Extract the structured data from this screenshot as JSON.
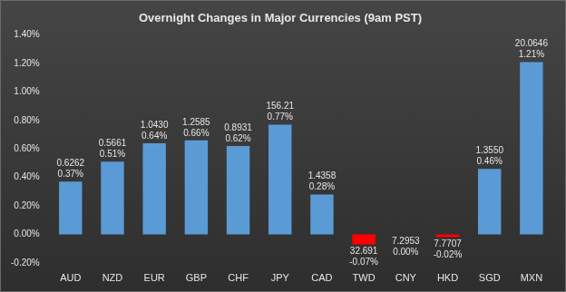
{
  "chart_data": {
    "type": "bar",
    "title": "Overnight Changes in Major Currencies (9am PST)",
    "categories": [
      "AUD",
      "NZD",
      "EUR",
      "GBP",
      "CHF",
      "JPY",
      "CAD",
      "TWD",
      "CNY",
      "HKD",
      "SGD",
      "MXN"
    ],
    "values": [
      0.37,
      0.51,
      0.64,
      0.66,
      0.62,
      0.77,
      0.28,
      -0.07,
      0.0,
      -0.02,
      0.46,
      1.21
    ],
    "value_labels": [
      "0.37%",
      "0.51%",
      "0.64%",
      "0.66%",
      "0.62%",
      "0.77%",
      "0.28%",
      "-0.07%",
      "0.00%",
      "-0.02%",
      "0.46%",
      "1.21%"
    ],
    "rate_labels": [
      "0.6262",
      "0.5661",
      "1.0430",
      "1.2585",
      "0.8931",
      "156.21",
      "1.4358",
      "32.691",
      "7.2953",
      "7.7707",
      "1.3550",
      "20.0646"
    ],
    "colors": [
      "#5b9bd5",
      "#5b9bd5",
      "#5b9bd5",
      "#5b9bd5",
      "#5b9bd5",
      "#5b9bd5",
      "#5b9bd5",
      "#ff0000",
      "#ff0000",
      "#ff0000",
      "#5b9bd5",
      "#5b9bd5"
    ],
    "ylim": [
      -0.2,
      1.4
    ],
    "yticks": [
      {
        "value": -0.2,
        "label": "-0.20%"
      },
      {
        "value": 0,
        "label": "0.00%"
      },
      {
        "value": 0.2,
        "label": "0.20%"
      },
      {
        "value": 0.4,
        "label": "0.40%"
      },
      {
        "value": 0.6,
        "label": "0.60%"
      },
      {
        "value": 0.8,
        "label": "0.80%"
      },
      {
        "value": 1.0,
        "label": "1.00%"
      },
      {
        "value": 1.2,
        "label": "1.20%"
      },
      {
        "value": 1.4,
        "label": "1.40%"
      }
    ],
    "grid": false,
    "data_labels": true
  }
}
